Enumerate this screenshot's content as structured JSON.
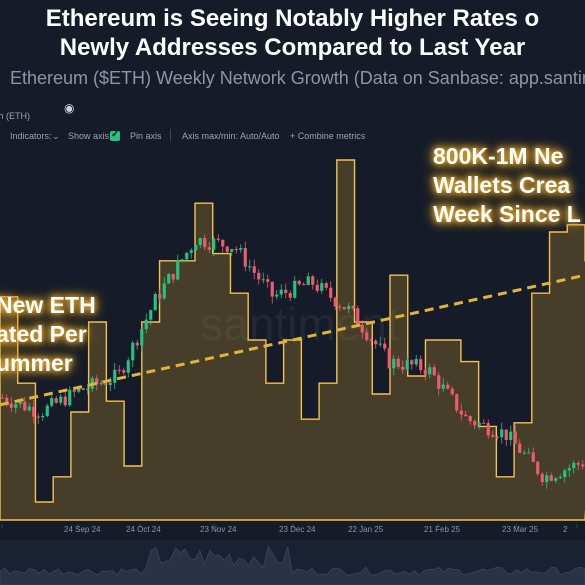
{
  "title_line1": "Ethereum is Seeing Notably Higher Rates o",
  "title_line2": "Newly Addresses Compared to Last Year",
  "subtitle": "Ethereum ($ETH) Weekly Network Growth (Data on Sanbase: app.santime",
  "toolbar": {
    "asset_chip": "th (ETH)",
    "indicators": "Indicators:",
    "show_axis": "Show axis",
    "pin_axis": "Pin axis",
    "axis_mode": "Axis max/min: Auto/Auto",
    "combine": "+ Combine metrics"
  },
  "annotations": {
    "right": [
      "800K-1M Ne",
      "Wallets Crea",
      "Week Since L"
    ],
    "left": [
      "New ETH",
      "ated Per",
      "ummer"
    ]
  },
  "watermark": "santiment",
  "colors": {
    "background": "#151b29",
    "network_growth_fill": "#c99a2e",
    "network_growth_line": "#f2c14e",
    "candle_up": "#26c281",
    "candle_down": "#ef5b6e",
    "trendline": "#e0b43a",
    "annotation_glow": "#f2b233"
  },
  "chart_data": {
    "type": "line",
    "x_ticks": [
      "24",
      "24 Sep 24",
      "24 Oct 24",
      "23 Nov 24",
      "23 Dec 24",
      "22 Jan 25",
      "21 Feb 25",
      "23 Mar 25",
      "2"
    ],
    "series": [
      {
        "kind": "step-area",
        "x": [
          "Aug 24",
          "Aug 31",
          "Sep 7",
          "Sep 14",
          "Sep 21",
          "Sep 28",
          "Oct 5",
          "Oct 12",
          "Oct 19",
          "Oct 26",
          "Nov 2",
          "Nov 9",
          "Nov 16",
          "Nov 23",
          "Nov 30",
          "Dec 7",
          "Dec 14",
          "Dec 21",
          "Dec 28",
          "Jan 4",
          "Jan 11",
          "Jan 18",
          "Jan 25",
          "Feb 1",
          "Feb 8",
          "Feb 15",
          "Feb 22",
          "Mar 1",
          "Mar 8",
          "Mar 15",
          "Mar 22",
          "Mar 29",
          "Apr 5",
          "Apr 12"
        ],
        "values": [
          0.62,
          0.38,
          0.05,
          0.12,
          0.3,
          0.55,
          0.33,
          0.15,
          0.55,
          0.72,
          0.72,
          0.88,
          0.74,
          0.63,
          0.5,
          0.38,
          0.5,
          0.28,
          0.38,
          1.0,
          0.55,
          0.35,
          0.68,
          0.4,
          0.5,
          0.5,
          0.44,
          0.26,
          0.12,
          0.27,
          0.63,
          0.8,
          0.82,
          0.72
        ]
      },
      {
        "kind": "price",
        "x": [
          "Aug 24",
          "Sep 14",
          "Oct 5",
          "Oct 26",
          "Nov 16",
          "Dec 7",
          "Dec 16",
          "Dec 28",
          "Jan 18",
          "Jan 25",
          "Feb 2",
          "Feb 21",
          "Mar 10",
          "Mar 23",
          "Apr 7",
          "Apr 12"
        ],
        "values": [
          0.34,
          0.3,
          0.36,
          0.4,
          0.62,
          0.78,
          0.76,
          0.62,
          0.66,
          0.58,
          0.44,
          0.42,
          0.28,
          0.24,
          0.12,
          0.16
        ]
      }
    ],
    "trendline": {
      "from": 0.32,
      "to": 0.68
    }
  }
}
